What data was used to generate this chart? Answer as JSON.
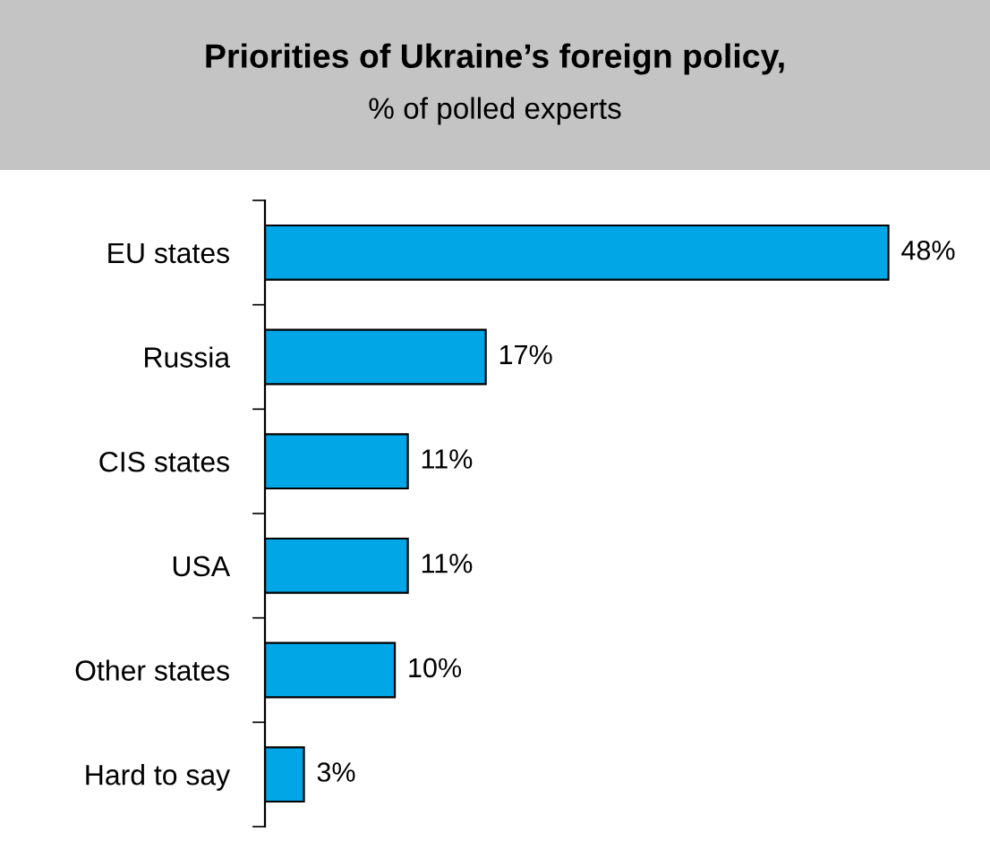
{
  "chart_data": {
    "type": "bar",
    "orientation": "horizontal",
    "title": "Priorities of Ukraine’s foreign policy,",
    "subtitle": "% of polled experts",
    "categories": [
      "EU states",
      "Russia",
      "CIS states",
      "USA",
      "Other states",
      "Hard to say"
    ],
    "values": [
      48,
      17,
      11,
      11,
      10,
      3
    ],
    "value_labels": [
      "48%",
      "17%",
      "11%",
      "11%",
      "10%",
      "3%"
    ],
    "color": "#00a6e6"
  }
}
